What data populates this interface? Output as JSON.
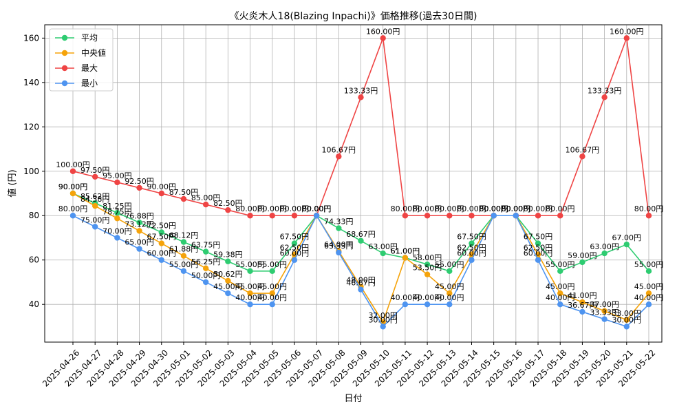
{
  "chart_data": {
    "type": "line",
    "title": "《火炎木人18(Blazing Inpachi)》価格推移(過去30日間)",
    "xlabel": "日付",
    "ylabel": "値 (円)",
    "ylim": [
      23,
      166
    ],
    "yticks": [
      40,
      60,
      80,
      100,
      120,
      140,
      160
    ],
    "grid": true,
    "legend_position": "top-left",
    "categories": [
      "2025-04-26",
      "2025-04-27",
      "2025-04-28",
      "2025-04-29",
      "2025-04-30",
      "2025-05-01",
      "2025-05-02",
      "2025-05-03",
      "2025-05-04",
      "2025-05-05",
      "2025-05-06",
      "2025-05-07",
      "2025-05-08",
      "2025-05-09",
      "2025-05-10",
      "2025-05-11",
      "2025-05-12",
      "2025-05-13",
      "2025-05-14",
      "2025-05-15",
      "2025-05-16",
      "2025-05-17",
      "2025-05-18",
      "2025-05-19",
      "2025-05-20",
      "2025-05-21",
      "2025-05-22"
    ],
    "series": [
      {
        "name": "平均",
        "color": "#2ecc71",
        "values": [
          90.0,
          85.62,
          81.25,
          76.88,
          72.5,
          68.12,
          63.75,
          59.38,
          55.0,
          55.0,
          67.5,
          80.0,
          74.33,
          68.67,
          63.0,
          61.0,
          58.0,
          55.0,
          67.5,
          80.0,
          80.0,
          67.5,
          55.0,
          59.0,
          63.0,
          67.0,
          55.0
        ],
        "labels": [
          "90.00円",
          "85.62円",
          "81.25円",
          "76.88円",
          "72.50円",
          "68.12円",
          "63.75円",
          "59.38円",
          "55.00円",
          "55.00円",
          "67.50円",
          "80.00円",
          "74.33円",
          "68.67円",
          "63.00円",
          "61.00円",
          "58.00円",
          "55.00円",
          "67.50円",
          "80.00円",
          "80.00円",
          "67.50円",
          "55.00円",
          "59.00円",
          "63.00円",
          "67.00円",
          "55.00円"
        ]
      },
      {
        "name": "中央値",
        "color": "#f5a30a",
        "values": [
          90.0,
          84.38,
          78.75,
          73.12,
          67.5,
          61.88,
          56.25,
          50.62,
          45.0,
          45.0,
          62.5,
          80.0,
          64.0,
          48.0,
          32.0,
          61.0,
          53.5,
          45.0,
          62.5,
          80.0,
          80.0,
          62.5,
          45.0,
          41.0,
          37.0,
          33.0,
          45.0
        ],
        "labels": [
          "90.00円",
          "84.38円",
          "78.75円",
          "73.12円",
          "67.50円",
          "61.88円",
          "56.25円",
          "50.62円",
          "45.00円",
          "45.00円",
          "62.50円",
          "80.00円",
          "64.00円",
          "48.00円",
          "32.00円",
          "61.00円",
          "53.50円",
          "45.00円",
          "62.50円",
          "80.00円",
          "80.00円",
          "62.50円",
          "45.00円",
          "41.00円",
          "37.00円",
          "33.00円",
          "45.00円"
        ]
      },
      {
        "name": "最大",
        "color": "#ef4444",
        "values": [
          100.0,
          97.5,
          95.0,
          92.5,
          90.0,
          87.5,
          85.0,
          82.5,
          80.0,
          80.0,
          80.0,
          80.0,
          106.67,
          133.33,
          160.0,
          80.0,
          80.0,
          80.0,
          80.0,
          80.0,
          80.0,
          80.0,
          80.0,
          106.67,
          133.33,
          160.0,
          80.0
        ],
        "labels": [
          "100.00円",
          "97.50円",
          "95.00円",
          "92.50円",
          "90.00円",
          "87.50円",
          "85.00円",
          "82.50円",
          "80.00円",
          "80.00円",
          "80.00円",
          "80.00円",
          "106.67円",
          "133.33円",
          "160.00円",
          "80.00円",
          "80.00円",
          "80.00円",
          "80.00円",
          "80.00円",
          "80.00円",
          "80.00円",
          "80.00円",
          "106.67円",
          "133.33円",
          "160.00円",
          "80.00円"
        ]
      },
      {
        "name": "最小",
        "color": "#4e94f0",
        "values": [
          80.0,
          75.0,
          70.0,
          65.0,
          60.0,
          55.0,
          50.0,
          45.0,
          40.0,
          40.0,
          60.0,
          80.0,
          63.33,
          46.67,
          30.0,
          40.0,
          40.0,
          40.0,
          60.0,
          80.0,
          80.0,
          60.0,
          40.0,
          36.67,
          33.33,
          30.0,
          40.0
        ],
        "labels": [
          "80.00円",
          "75.00円",
          "70.00円",
          "65.00円",
          "60.00円",
          "55.00円",
          "50.00円",
          "45.00円",
          "40.00円",
          "40.00円",
          "60.00円",
          "80.00円",
          "63.33円",
          "46.67円",
          "30.00円",
          "40.00円",
          "40.00円",
          "40.00円",
          "60.00円",
          "80.00円",
          "80.00円",
          "60.00円",
          "40.00円",
          "36.67円",
          "33.33円",
          "30.00円",
          "40.00円"
        ]
      }
    ]
  }
}
